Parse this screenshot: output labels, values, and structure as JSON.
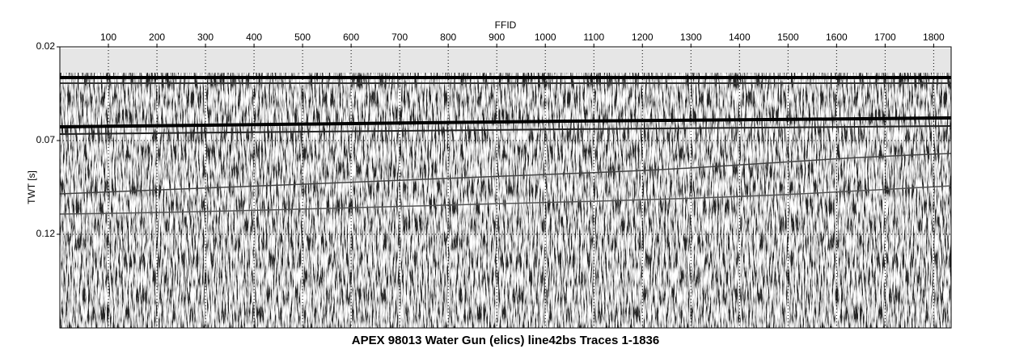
{
  "chart_data": {
    "type": "seismic",
    "title": "APEX 98013 Water Gun (elics) line42bs Traces 1-1836",
    "xlabel": "FFID",
    "ylabel": "TWT [s]",
    "xlim": [
      0,
      1836
    ],
    "xticks": [
      100,
      200,
      300,
      400,
      500,
      600,
      700,
      800,
      900,
      1000,
      1100,
      1200,
      1300,
      1400,
      1500,
      1600,
      1700,
      1800
    ],
    "ylim": [
      0.02,
      0.17
    ],
    "yticks": [
      0.02,
      0.07,
      0.12
    ],
    "grid": true
  }
}
